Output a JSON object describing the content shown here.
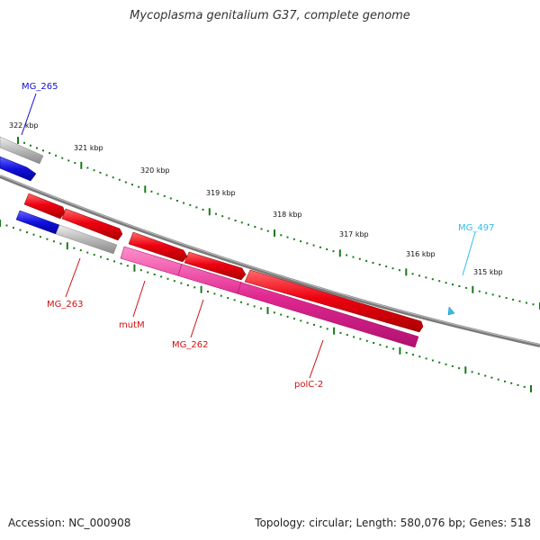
{
  "title": "Mycoplasma genitalium G37, complete genome",
  "footer": {
    "accession": "Accession: NC_000908",
    "summary": "Topology: circular; Length: 580,076 bp; Genes: 518"
  },
  "colors": {
    "backbone": "#808080",
    "ticks": "#1a7a1a",
    "red_gene": "#e8001a",
    "pink_gene": "#e0288f",
    "blue_gene": "#1111dd",
    "grey_gene": "#b0b0b0",
    "label_blue": "#1111cc",
    "label_cyan": "#33bbee",
    "label_red": "#cc1111"
  },
  "ruler": [
    {
      "label": "322 kbp"
    },
    {
      "label": "321 kbp"
    },
    {
      "label": "320 kbp"
    },
    {
      "label": "319 kbp"
    },
    {
      "label": "318 kbp"
    },
    {
      "label": "317 kbp"
    },
    {
      "label": "316 kbp"
    },
    {
      "label": "315 kbp"
    }
  ],
  "gene_labels": [
    {
      "name": "MG_265",
      "color": "blue"
    },
    {
      "name": "MG_497",
      "color": "cyan"
    },
    {
      "name": "MG_263",
      "color": "red"
    },
    {
      "name": "mutM",
      "color": "red"
    },
    {
      "name": "MG_262",
      "color": "red"
    },
    {
      "name": "polC-2",
      "color": "red"
    }
  ]
}
